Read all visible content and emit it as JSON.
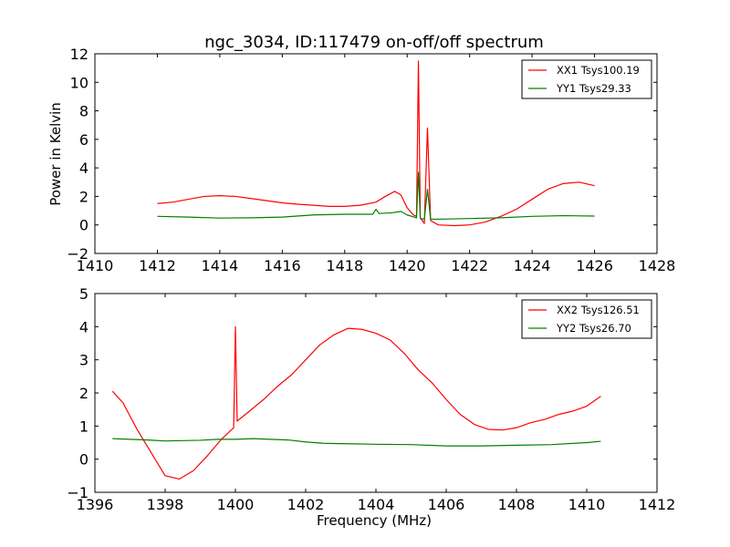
{
  "chart_data": [
    {
      "type": "line",
      "title": "ngc_3034, ID:117479 on-off/off spectrum",
      "ylabel": "Power in Kelvin",
      "xlabel": "",
      "xlim": [
        1410,
        1428
      ],
      "ylim": [
        -2,
        12
      ],
      "xticks": [
        "1410",
        "1412",
        "1414",
        "1416",
        "1418",
        "1420",
        "1422",
        "1424",
        "1426",
        "1428"
      ],
      "yticks": [
        "−2",
        "0",
        "2",
        "4",
        "6",
        "8",
        "10",
        "12"
      ],
      "grid": false,
      "legend_position": "top-right",
      "series": [
        {
          "name": "XX1 Tsys100.19",
          "color": "#ff0000",
          "points": [
            [
              1412.0,
              1.5
            ],
            [
              1412.5,
              1.6
            ],
            [
              1413.0,
              1.8
            ],
            [
              1413.5,
              2.0
            ],
            [
              1414.0,
              2.05
            ],
            [
              1414.5,
              2.0
            ],
            [
              1415.0,
              1.85
            ],
            [
              1415.5,
              1.7
            ],
            [
              1416.0,
              1.55
            ],
            [
              1416.5,
              1.45
            ],
            [
              1417.0,
              1.38
            ],
            [
              1417.5,
              1.3
            ],
            [
              1418.0,
              1.3
            ],
            [
              1418.5,
              1.38
            ],
            [
              1419.0,
              1.6
            ],
            [
              1419.3,
              2.0
            ],
            [
              1419.6,
              2.35
            ],
            [
              1419.8,
              2.1
            ],
            [
              1420.0,
              1.2
            ],
            [
              1420.2,
              0.7
            ],
            [
              1420.3,
              0.6
            ],
            [
              1420.36,
              11.5
            ],
            [
              1420.42,
              0.5
            ],
            [
              1420.55,
              0.1
            ],
            [
              1420.65,
              6.8
            ],
            [
              1420.75,
              0.3
            ],
            [
              1421.0,
              0.0
            ],
            [
              1421.5,
              -0.05
            ],
            [
              1422.0,
              0.0
            ],
            [
              1422.5,
              0.2
            ],
            [
              1423.0,
              0.6
            ],
            [
              1423.5,
              1.1
            ],
            [
              1424.0,
              1.8
            ],
            [
              1424.5,
              2.5
            ],
            [
              1425.0,
              2.9
            ],
            [
              1425.5,
              3.0
            ],
            [
              1426.0,
              2.75
            ]
          ]
        },
        {
          "name": "YY1 Tsys29.33",
          "color": "#008000",
          "points": [
            [
              1412.0,
              0.6
            ],
            [
              1413.0,
              0.55
            ],
            [
              1414.0,
              0.48
            ],
            [
              1415.0,
              0.5
            ],
            [
              1416.0,
              0.55
            ],
            [
              1417.0,
              0.7
            ],
            [
              1418.0,
              0.75
            ],
            [
              1418.9,
              0.75
            ],
            [
              1419.0,
              1.1
            ],
            [
              1419.1,
              0.8
            ],
            [
              1419.5,
              0.85
            ],
            [
              1419.8,
              0.95
            ],
            [
              1420.0,
              0.7
            ],
            [
              1420.3,
              0.5
            ],
            [
              1420.36,
              3.7
            ],
            [
              1420.42,
              0.45
            ],
            [
              1420.55,
              0.4
            ],
            [
              1420.65,
              2.5
            ],
            [
              1420.75,
              0.4
            ],
            [
              1421.0,
              0.4
            ],
            [
              1422.0,
              0.45
            ],
            [
              1423.0,
              0.5
            ],
            [
              1424.0,
              0.6
            ],
            [
              1425.0,
              0.65
            ],
            [
              1426.0,
              0.62
            ]
          ]
        }
      ]
    },
    {
      "type": "line",
      "title": "",
      "xlabel": "Frequency (MHz)",
      "ylabel": "",
      "xlim": [
        1396,
        1412
      ],
      "ylim": [
        -1,
        5
      ],
      "xticks": [
        "1396",
        "1398",
        "1400",
        "1402",
        "1404",
        "1406",
        "1408",
        "1410",
        "1412"
      ],
      "yticks": [
        "−1",
        "0",
        "1",
        "2",
        "3",
        "4",
        "5"
      ],
      "grid": false,
      "legend_position": "top-right",
      "series": [
        {
          "name": "XX2 Tsys126.51",
          "color": "#ff0000",
          "points": [
            [
              1396.5,
              2.05
            ],
            [
              1396.8,
              1.7
            ],
            [
              1397.2,
              0.9
            ],
            [
              1397.6,
              0.2
            ],
            [
              1398.0,
              -0.5
            ],
            [
              1398.4,
              -0.6
            ],
            [
              1398.8,
              -0.35
            ],
            [
              1399.2,
              0.1
            ],
            [
              1399.6,
              0.6
            ],
            [
              1399.95,
              0.95
            ],
            [
              1400.0,
              4.0
            ],
            [
              1400.05,
              1.15
            ],
            [
              1400.4,
              1.45
            ],
            [
              1400.8,
              1.8
            ],
            [
              1401.2,
              2.2
            ],
            [
              1401.6,
              2.55
            ],
            [
              1402.0,
              3.0
            ],
            [
              1402.4,
              3.45
            ],
            [
              1402.8,
              3.75
            ],
            [
              1403.2,
              3.95
            ],
            [
              1403.6,
              3.92
            ],
            [
              1404.0,
              3.8
            ],
            [
              1404.4,
              3.6
            ],
            [
              1404.8,
              3.2
            ],
            [
              1405.2,
              2.7
            ],
            [
              1405.6,
              2.3
            ],
            [
              1406.0,
              1.8
            ],
            [
              1406.4,
              1.35
            ],
            [
              1406.8,
              1.05
            ],
            [
              1407.2,
              0.9
            ],
            [
              1407.6,
              0.88
            ],
            [
              1408.0,
              0.95
            ],
            [
              1408.4,
              1.1
            ],
            [
              1408.8,
              1.2
            ],
            [
              1409.2,
              1.35
            ],
            [
              1409.6,
              1.45
            ],
            [
              1410.0,
              1.6
            ],
            [
              1410.4,
              1.9
            ]
          ]
        },
        {
          "name": "YY2 Tsys26.70",
          "color": "#008000",
          "points": [
            [
              1396.5,
              0.62
            ],
            [
              1397.0,
              0.6
            ],
            [
              1397.5,
              0.58
            ],
            [
              1398.0,
              0.55
            ],
            [
              1398.5,
              0.56
            ],
            [
              1399.0,
              0.57
            ],
            [
              1399.5,
              0.6
            ],
            [
              1400.0,
              0.6
            ],
            [
              1400.5,
              0.62
            ],
            [
              1401.0,
              0.6
            ],
            [
              1401.5,
              0.58
            ],
            [
              1402.0,
              0.52
            ],
            [
              1402.5,
              0.48
            ],
            [
              1403.0,
              0.47
            ],
            [
              1404.0,
              0.45
            ],
            [
              1405.0,
              0.44
            ],
            [
              1406.0,
              0.4
            ],
            [
              1407.0,
              0.4
            ],
            [
              1408.0,
              0.42
            ],
            [
              1409.0,
              0.44
            ],
            [
              1410.0,
              0.5
            ],
            [
              1410.4,
              0.54
            ]
          ]
        }
      ]
    }
  ]
}
